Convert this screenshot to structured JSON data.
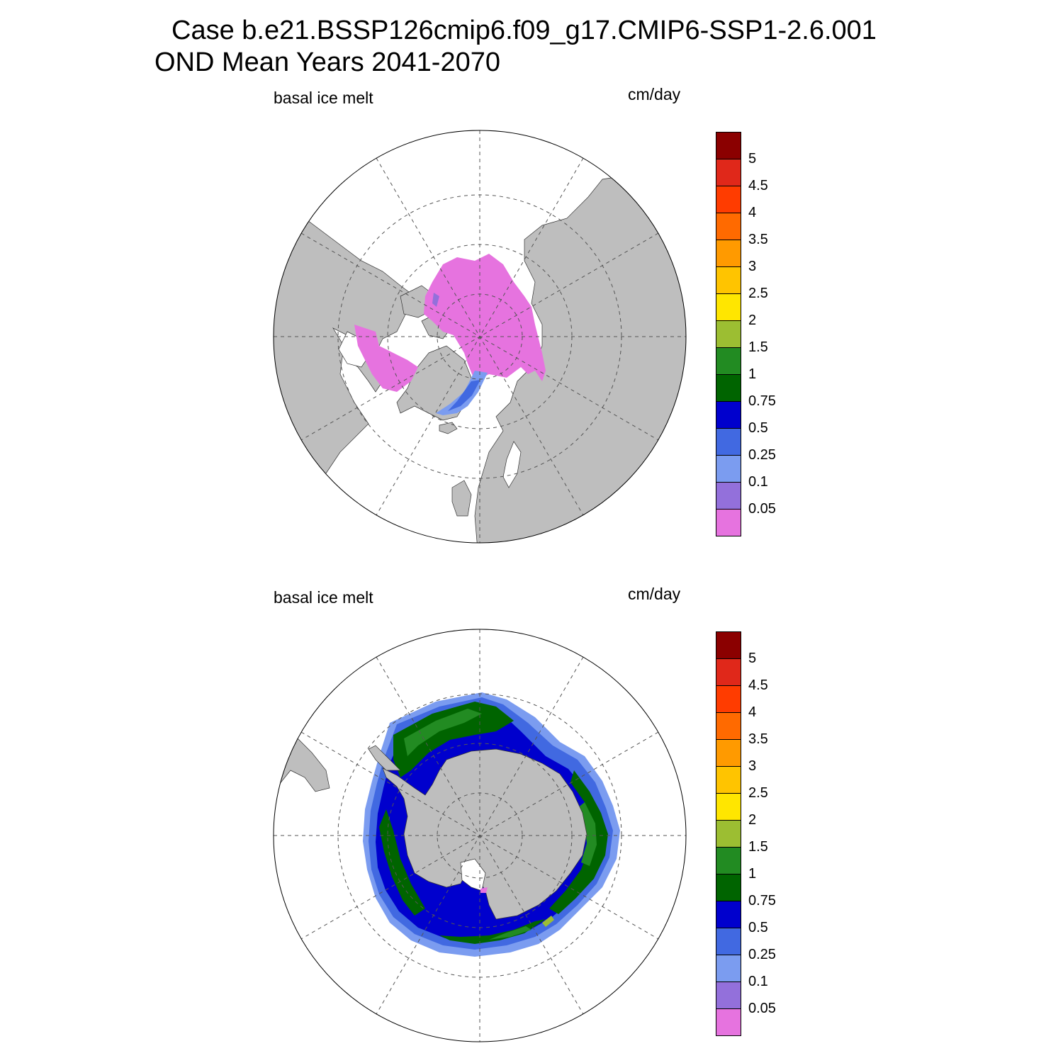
{
  "title": {
    "line1": "Case b.e21.BSSP126cmip6.f09_g17.CMIP6-SSP1-2.6.001",
    "line2": "OND Mean   Years 2041-2070"
  },
  "colors": {
    "land": "#bebebe",
    "ocean": "#ffffff",
    "grid": "#555555",
    "coast": "#333333"
  },
  "colorbar": {
    "labels": [
      "5",
      "4.5",
      "4",
      "3.5",
      "3",
      "2.5",
      "2",
      "1.5",
      "1",
      "0.75",
      "0.5",
      "0.25",
      "0.1",
      "0.05"
    ],
    "colors": [
      "#8b0000",
      "#e0281a",
      "#ff3c00",
      "#ff6a00",
      "#ff9a00",
      "#ffc400",
      "#ffe600",
      "#9cbe32",
      "#228b22",
      "#006400",
      "#0000cd",
      "#4169e1",
      "#7b9cf0",
      "#9370db",
      "#e673df"
    ]
  },
  "panels": [
    {
      "id": "north",
      "left_label": "basal ice melt",
      "right_label": "cm/day",
      "hemisphere": "Arctic"
    },
    {
      "id": "south",
      "left_label": "basal ice melt",
      "right_label": "cm/day",
      "hemisphere": "Antarctic"
    }
  ]
}
